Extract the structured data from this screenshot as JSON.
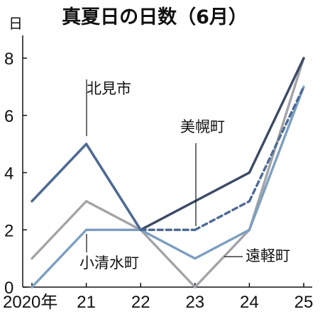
{
  "chart_data": {
    "type": "line",
    "title": "真夏日の日数（6月）",
    "ylabel": "日",
    "categories": [
      "2020年",
      "21",
      "22",
      "23",
      "24",
      "25"
    ],
    "ylim": [
      0,
      8
    ],
    "yticks": [
      "0",
      "2",
      "4",
      "6",
      "8"
    ],
    "grid": false,
    "series": [
      {
        "name": "北見市",
        "values": [
          3,
          5,
          2,
          3,
          4,
          8
        ],
        "color": "#3b4a66",
        "dash": [
          false,
          false,
          false,
          false,
          false
        ]
      },
      {
        "name": "美幌町",
        "values": [
          3,
          5,
          2,
          2,
          3,
          7
        ],
        "color": "#4d6b95",
        "dash": [
          false,
          false,
          true,
          true,
          true
        ]
      },
      {
        "name": "小清水町",
        "values": [
          0,
          2,
          2,
          1,
          2,
          7
        ],
        "color": "#7c9fc1",
        "dash": [
          false,
          false,
          false,
          false,
          false
        ]
      },
      {
        "name": "遠軽町",
        "values": [
          1,
          3,
          2,
          0,
          2,
          8
        ],
        "color": "#a3a4a8",
        "dash": [
          false,
          false,
          false,
          false,
          false
        ]
      }
    ]
  }
}
